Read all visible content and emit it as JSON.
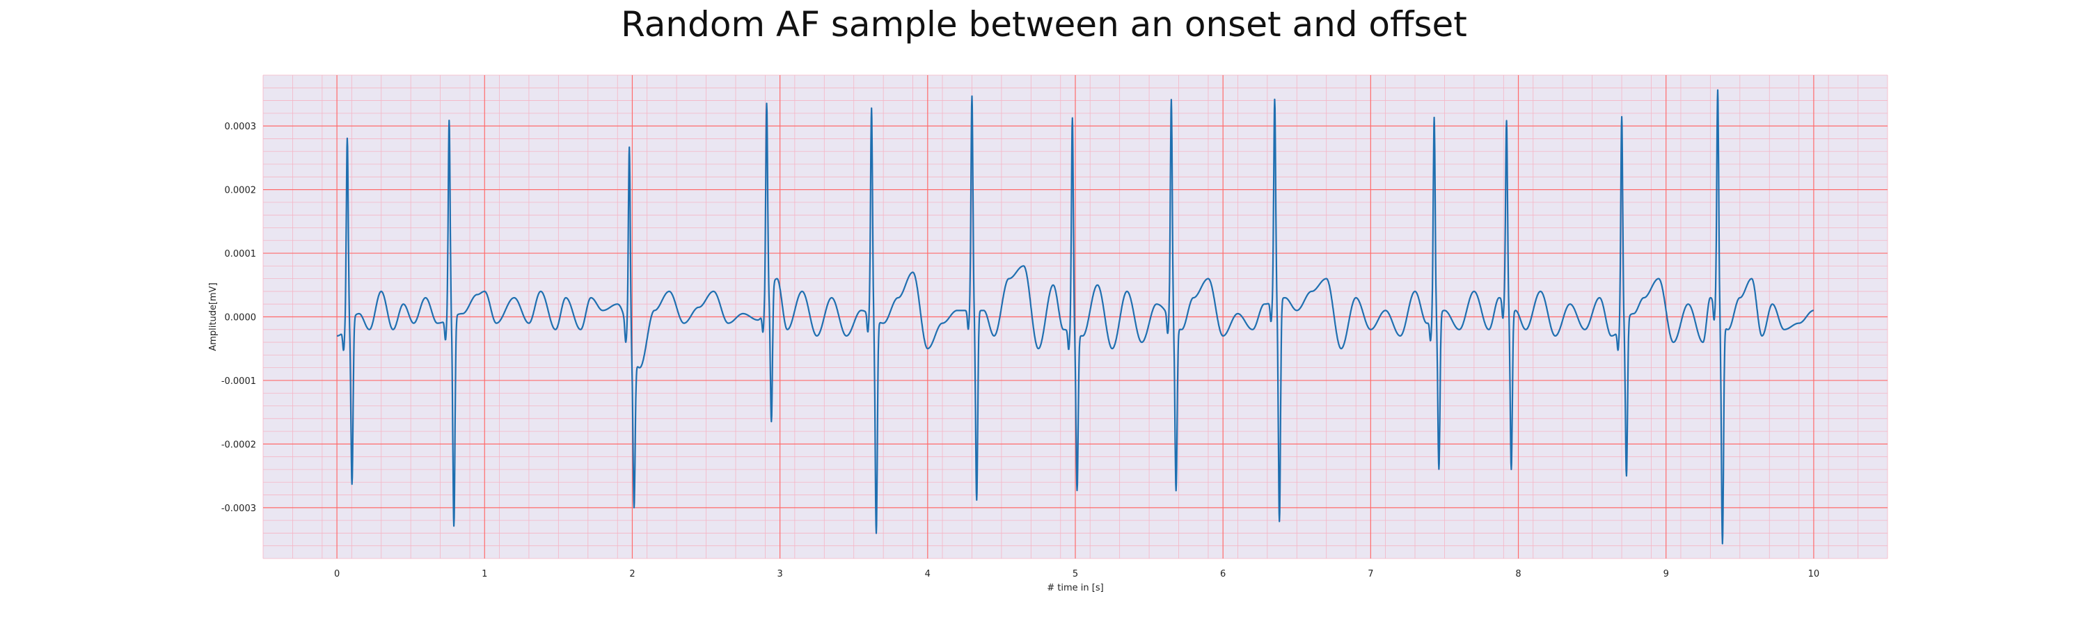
{
  "chart_data": {
    "type": "line",
    "title": "Random AF sample between an onset and offset",
    "xlabel": "# time in [s]",
    "ylabel": "Amplitude[mV]",
    "xlim": [
      -0.5,
      10.5
    ],
    "ylim": [
      -0.00038,
      0.00038
    ],
    "xticks": [
      0,
      1,
      2,
      3,
      4,
      5,
      6,
      7,
      8,
      9,
      10
    ],
    "xtick_labels": [
      "0",
      "1",
      "2",
      "3",
      "4",
      "5",
      "6",
      "7",
      "8",
      "9",
      "10"
    ],
    "yticks": [
      -0.0003,
      -0.0002,
      -0.0001,
      0.0,
      0.0001,
      0.0002,
      0.0003
    ],
    "ytick_labels": [
      "-0.0003",
      "-0.0002",
      "-0.0001",
      "0.0000",
      "0.0001",
      "0.0002",
      "0.0003"
    ],
    "grid": true,
    "colors": {
      "background": "#eae6f2",
      "major_grid": "#ff6b6b",
      "minor_grid": "#f5b5c5",
      "line": "#1f6fb0"
    },
    "series": [
      {
        "beats": [
          {
            "t": 0.07,
            "peak": 0.000295,
            "trough": -0.00026
          },
          {
            "t": 0.76,
            "peak": 0.000312,
            "trough": -0.00033
          },
          {
            "t": 1.98,
            "peak": 0.000302,
            "trough": -0.000235
          },
          {
            "t": 2.91,
            "peak": 0.000312,
            "trough": -0.000212
          },
          {
            "t": 3.62,
            "peak": 0.000327,
            "trough": -0.000335
          },
          {
            "t": 4.3,
            "peak": 0.000337,
            "trough": -0.000298
          },
          {
            "t": 4.98,
            "peak": 0.000337,
            "trough": -0.000245
          },
          {
            "t": 5.65,
            "peak": 0.000347,
            "trough": -0.000258
          },
          {
            "t": 6.35,
            "peak": 0.000317,
            "trough": -0.00035
          },
          {
            "t": 7.43,
            "peak": 0.000316,
            "trough": -0.000245
          },
          {
            "t": 7.92,
            "peak": 0.000287,
            "trough": -0.000253
          },
          {
            "t": 8.7,
            "peak": 0.000329,
            "trough": -0.000247
          },
          {
            "t": 9.35,
            "peak": 0.000345,
            "trough": -0.000348
          }
        ],
        "baseline": {
          "t": [
            0.0,
            0.15,
            0.22,
            0.3,
            0.38,
            0.45,
            0.52,
            0.6,
            0.68,
            0.85,
            0.95,
            1.0,
            1.08,
            1.2,
            1.3,
            1.38,
            1.48,
            1.55,
            1.65,
            1.72,
            1.8,
            1.9,
            2.05,
            2.15,
            2.25,
            2.35,
            2.45,
            2.55,
            2.65,
            2.75,
            2.85,
            2.98,
            3.05,
            3.15,
            3.25,
            3.35,
            3.45,
            3.55,
            3.7,
            3.8,
            3.9,
            4.0,
            4.1,
            4.2,
            4.38,
            4.45,
            4.55,
            4.65,
            4.75,
            4.85,
            4.92,
            5.05,
            5.15,
            5.25,
            5.35,
            5.45,
            5.55,
            5.72,
            5.8,
            5.9,
            6.0,
            6.1,
            6.2,
            6.28,
            6.42,
            6.5,
            6.6,
            6.7,
            6.8,
            6.9,
            7.0,
            7.1,
            7.2,
            7.3,
            7.38,
            7.5,
            7.6,
            7.7,
            7.8,
            7.87,
            7.98,
            8.05,
            8.15,
            8.25,
            8.35,
            8.45,
            8.55,
            8.63,
            8.78,
            8.85,
            8.95,
            9.05,
            9.15,
            9.25,
            9.3,
            9.42,
            9.5,
            9.58,
            9.65,
            9.72,
            9.8,
            9.9,
            10.0
          ],
          "y": [
            -3e-05,
            5e-06,
            -2e-05,
            4e-05,
            -2e-05,
            2e-05,
            -1e-05,
            3e-05,
            -1e-05,
            5e-06,
            3.5e-05,
            4e-05,
            -1e-05,
            3e-05,
            -1e-05,
            4e-05,
            -2e-05,
            3e-05,
            -2e-05,
            3e-05,
            1e-05,
            2e-05,
            -8e-05,
            1e-05,
            4e-05,
            -1e-05,
            1.5e-05,
            4e-05,
            -1e-05,
            5e-06,
            -5e-06,
            6e-05,
            -2e-05,
            4e-05,
            -3e-05,
            3e-05,
            -3e-05,
            1e-05,
            -1e-05,
            3e-05,
            7e-05,
            -5e-05,
            -1e-05,
            1e-05,
            1e-05,
            -3e-05,
            6e-05,
            8e-05,
            -5e-05,
            5e-05,
            -2e-05,
            -3e-05,
            5e-05,
            -5e-05,
            4e-05,
            -4e-05,
            2e-05,
            -2e-05,
            3e-05,
            6e-05,
            -3e-05,
            5e-06,
            -2e-05,
            2e-05,
            3e-05,
            1e-05,
            4e-05,
            6e-05,
            -5e-05,
            3e-05,
            -2e-05,
            1e-05,
            -3e-05,
            4e-05,
            -1e-05,
            1e-05,
            -2e-05,
            4e-05,
            -2e-05,
            3e-05,
            1e-05,
            -2e-05,
            4e-05,
            -3e-05,
            2e-05,
            -2e-05,
            3e-05,
            -3e-05,
            5e-06,
            3e-05,
            6e-05,
            -4e-05,
            2e-05,
            -4e-05,
            3e-05,
            -2e-05,
            3e-05,
            6e-05,
            -3e-05,
            2e-05,
            -2e-05,
            -1e-05,
            1e-05
          ]
        }
      }
    ]
  }
}
